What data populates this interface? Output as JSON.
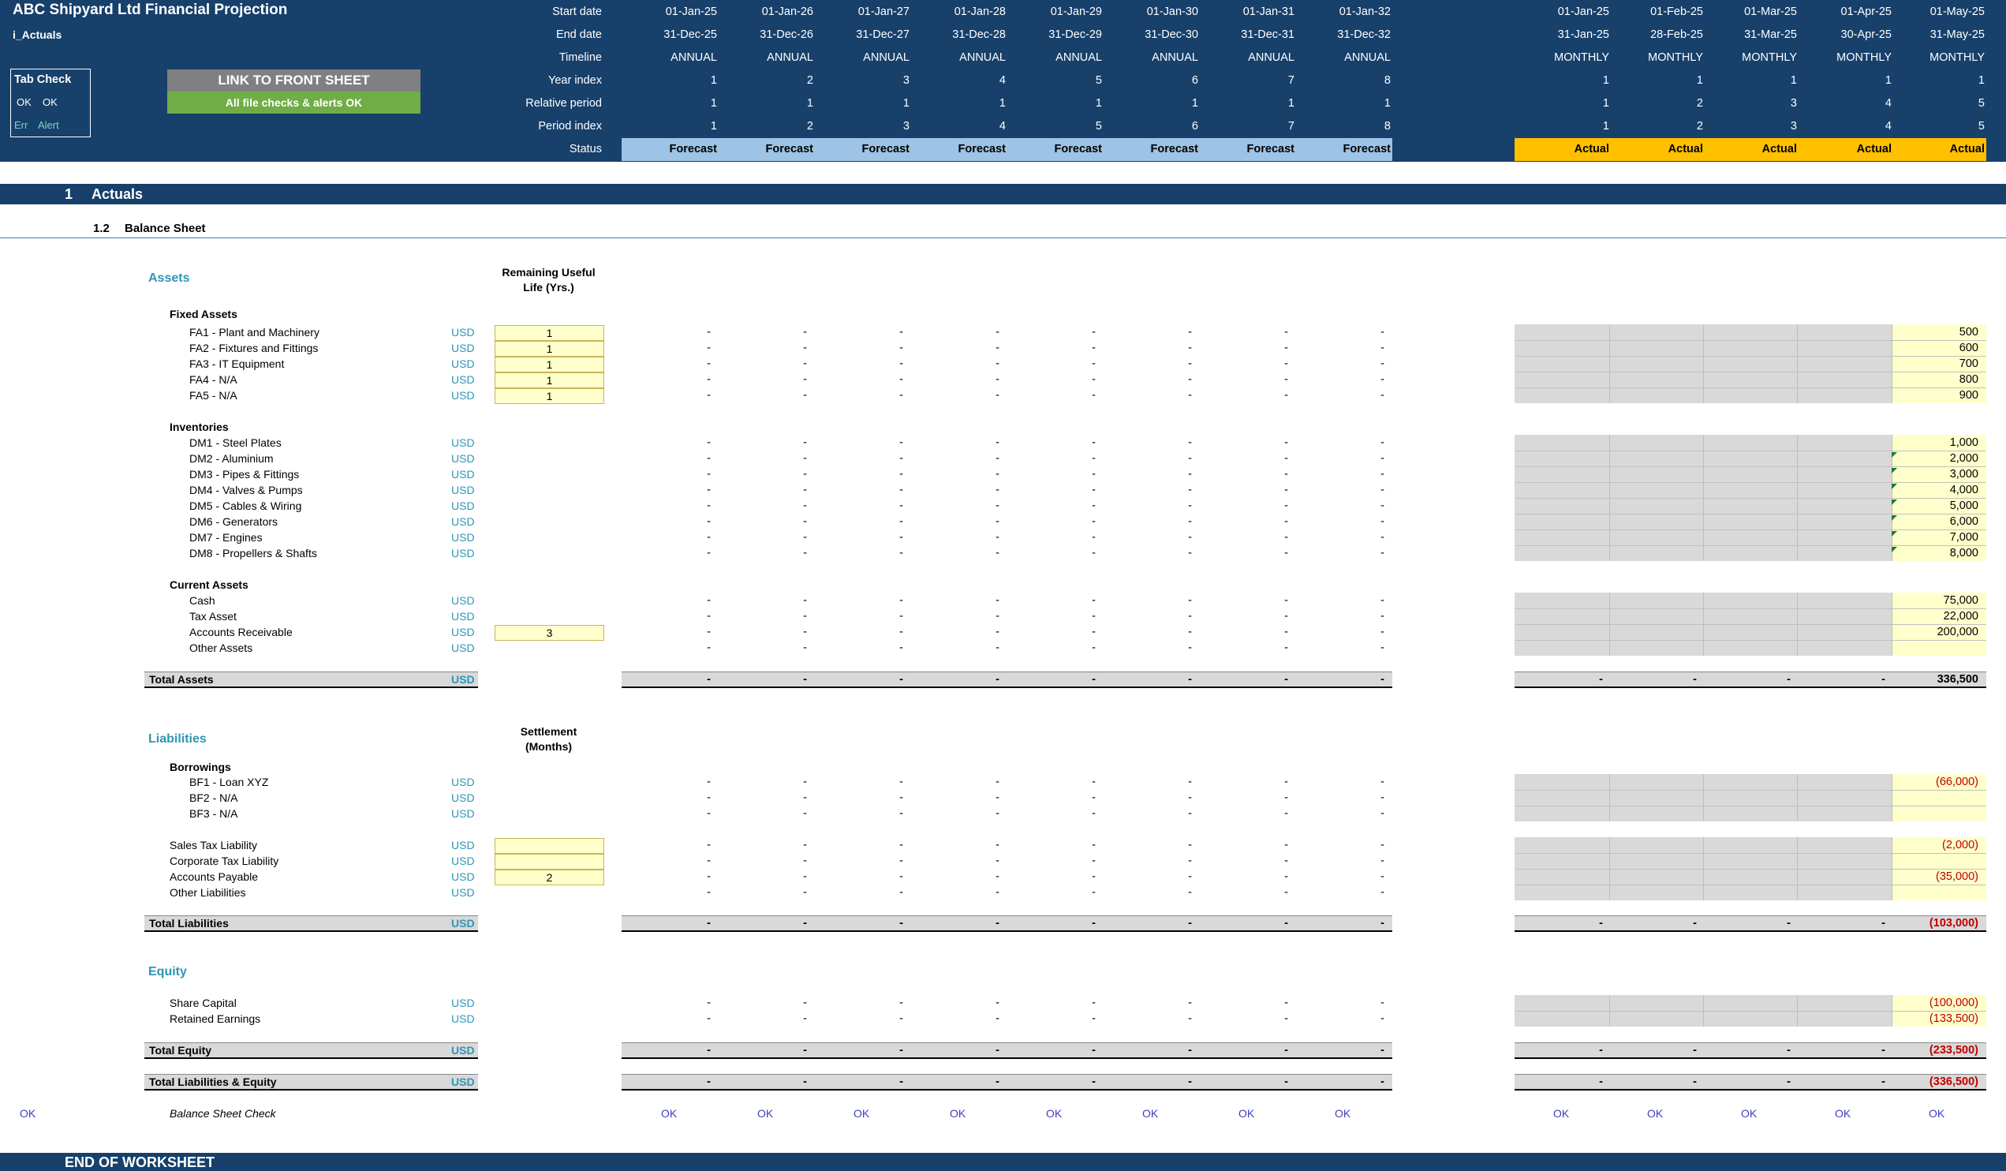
{
  "header": {
    "title": "ABC Shipyard Ltd Financial Projection",
    "sheet_name": "i_Actuals",
    "tab_check": {
      "title": "Tab Check",
      "ok1": "OK",
      "ok2": "OK",
      "err": "Err",
      "alert": "Alert"
    },
    "link_button": "LINK TO FRONT SHEET",
    "checks_banner": "All file checks & alerts OK",
    "row_labels": {
      "start_date": "Start date",
      "end_date": "End date",
      "timeline": "Timeline",
      "year_index": "Year index",
      "relative_period": "Relative period",
      "period_index": "Period index",
      "status": "Status"
    },
    "annual": {
      "start": [
        "01-Jan-25",
        "01-Jan-26",
        "01-Jan-27",
        "01-Jan-28",
        "01-Jan-29",
        "01-Jan-30",
        "01-Jan-31",
        "01-Jan-32"
      ],
      "end": [
        "31-Dec-25",
        "31-Dec-26",
        "31-Dec-27",
        "31-Dec-28",
        "31-Dec-29",
        "31-Dec-30",
        "31-Dec-31",
        "31-Dec-32"
      ],
      "timeline": [
        "ANNUAL",
        "ANNUAL",
        "ANNUAL",
        "ANNUAL",
        "ANNUAL",
        "ANNUAL",
        "ANNUAL",
        "ANNUAL"
      ],
      "year_index": [
        "1",
        "2",
        "3",
        "4",
        "5",
        "6",
        "7",
        "8"
      ],
      "relative_period": [
        "1",
        "1",
        "1",
        "1",
        "1",
        "1",
        "1",
        "1"
      ],
      "period_index": [
        "1",
        "2",
        "3",
        "4",
        "5",
        "6",
        "7",
        "8"
      ],
      "status": [
        "Forecast",
        "Forecast",
        "Forecast",
        "Forecast",
        "Forecast",
        "Forecast",
        "Forecast",
        "Forecast"
      ]
    },
    "monthly": {
      "start": [
        "01-Jan-25",
        "01-Feb-25",
        "01-Mar-25",
        "01-Apr-25",
        "01-May-25"
      ],
      "end": [
        "31-Jan-25",
        "28-Feb-25",
        "31-Mar-25",
        "30-Apr-25",
        "31-May-25"
      ],
      "timeline": [
        "MONTHLY",
        "MONTHLY",
        "MONTHLY",
        "MONTHLY",
        "MONTHLY"
      ],
      "year_index": [
        "1",
        "1",
        "1",
        "1",
        "1"
      ],
      "relative_period": [
        "1",
        "2",
        "3",
        "4",
        "5"
      ],
      "period_index": [
        "1",
        "2",
        "3",
        "4",
        "5"
      ],
      "status": [
        "Actual",
        "Actual",
        "Actual",
        "Actual",
        "Actual"
      ]
    }
  },
  "section": {
    "number": "1",
    "title": "Actuals"
  },
  "subsection": {
    "number": "1.2",
    "title": "Balance Sheet"
  },
  "dash": "-",
  "unit": "USD",
  "assets": {
    "heading": "Assets",
    "col_header_line1": "Remaining Useful",
    "col_header_line2": "Life (Yrs.)",
    "fixed_heading": "Fixed Assets",
    "fixed": [
      {
        "label": "FA1 - Plant and Machinery",
        "life": "1",
        "may": "500"
      },
      {
        "label": "FA2 - Fixtures and Fittings",
        "life": "1",
        "may": "600"
      },
      {
        "label": "FA3 - IT Equipment",
        "life": "1",
        "may": "700"
      },
      {
        "label": "FA4 - N/A",
        "life": "1",
        "may": "800"
      },
      {
        "label": "FA5 - N/A",
        "life": "1",
        "may": "900"
      }
    ],
    "inventories_heading": "Inventories",
    "inventories": [
      {
        "label": "DM1 - Steel Plates",
        "may": "1,000"
      },
      {
        "label": "DM2 - Aluminium",
        "may": "2,000"
      },
      {
        "label": "DM3 - Pipes & Fittings",
        "may": "3,000"
      },
      {
        "label": "DM4 - Valves & Pumps",
        "may": "4,000"
      },
      {
        "label": "DM5 - Cables & Wiring",
        "may": "5,000"
      },
      {
        "label": "DM6 - Generators",
        "may": "6,000"
      },
      {
        "label": "DM7 - Engines",
        "may": "7,000"
      },
      {
        "label": "DM8 - Propellers & Shafts",
        "may": "8,000"
      }
    ],
    "current_heading": "Current Assets",
    "current": [
      {
        "label": "Cash",
        "may": "75,000"
      },
      {
        "label": "Tax Asset",
        "may": "22,000"
      },
      {
        "label": "Accounts Receivable",
        "may": "200,000",
        "extra": "3"
      },
      {
        "label": "Other Assets",
        "may": ""
      }
    ],
    "total_label": "Total Assets",
    "total_may": "336,500"
  },
  "liabilities": {
    "heading": "Liabilities",
    "col_header_line1": "Settlement",
    "col_header_line2": "(Months)",
    "borrowings_heading": "Borrowings",
    "borrowings": [
      {
        "label": "BF1 - Loan XYZ",
        "may": "(66,000)"
      },
      {
        "label": "BF2 - N/A",
        "may": ""
      },
      {
        "label": "BF3 - N/A",
        "may": ""
      }
    ],
    "other": [
      {
        "label": "Sales Tax Liability",
        "may": "(2,000)",
        "extra": ""
      },
      {
        "label": "Corporate Tax Liability",
        "may": "",
        "extra": ""
      },
      {
        "label": "Accounts Payable",
        "may": "(35,000)",
        "extra": "2"
      },
      {
        "label": "Other Liabilities",
        "may": ""
      }
    ],
    "total_label": "Total Liabilities",
    "total_may": "(103,000)"
  },
  "equity": {
    "heading": "Equity",
    "items": [
      {
        "label": "Share Capital",
        "may": "(100,000)"
      },
      {
        "label": "Retained Earnings",
        "may": "(133,500)"
      }
    ],
    "total_label": "Total Equity",
    "total_may": "(233,500)",
    "tle_label": "Total Liabilities & Equity",
    "tle_may": "(336,500)"
  },
  "check": {
    "left": "OK",
    "label": "Balance Sheet Check",
    "annual": [
      "OK",
      "OK",
      "OK",
      "OK",
      "OK",
      "OK",
      "OK",
      "OK"
    ],
    "monthly": [
      "OK",
      "OK",
      "OK",
      "OK",
      "OK"
    ]
  },
  "footer": "END OF WORKSHEET",
  "colors": {
    "header_bg": "#17406b",
    "forecast_bg": "#9dc3e6",
    "actual_bg": "#ffc000",
    "input_bg": "#ffffcc",
    "grey_cell": "#d9d9d9",
    "check_green": "#70ad47",
    "link_grey": "#808080",
    "teal": "#2e96b4",
    "negative": "#c00000"
  }
}
